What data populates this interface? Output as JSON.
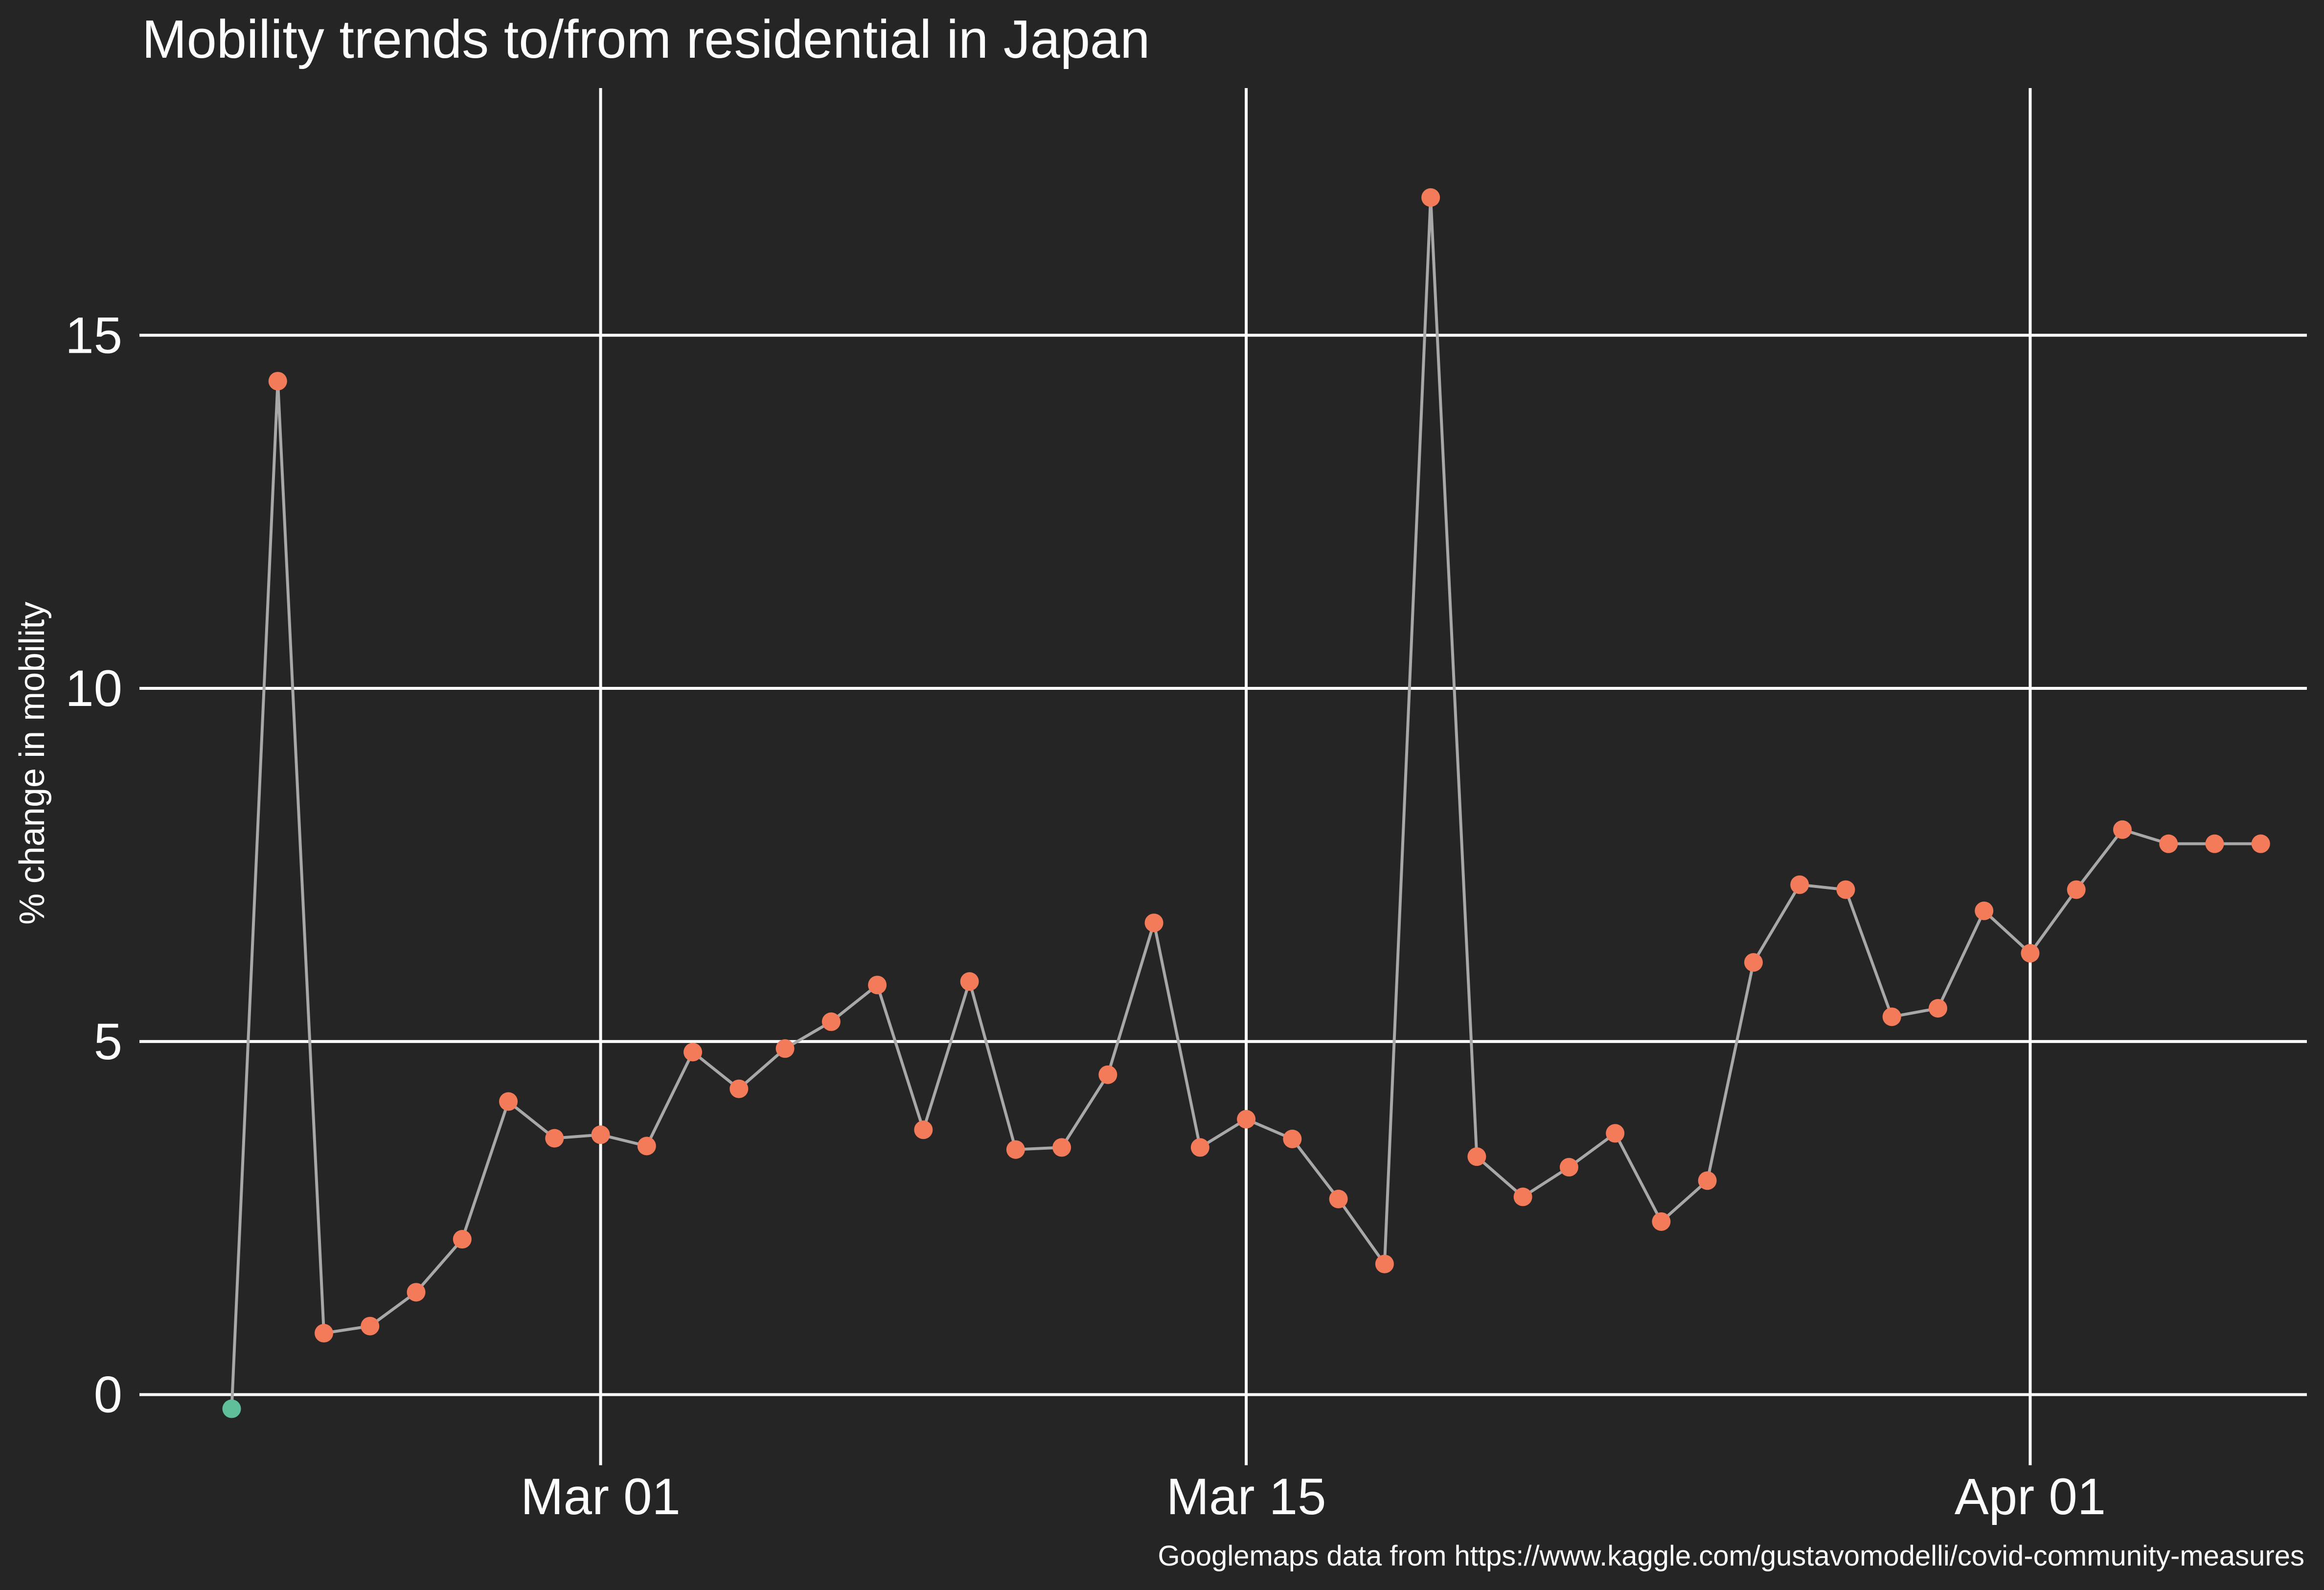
{
  "chart_data": {
    "type": "line",
    "title": "Mobility trends to/from residential in Japan",
    "ylabel": "% change in mobility",
    "xlabel": "",
    "caption": "Googlemaps data from https://www.kaggle.com/gustavomodelli/covid-community-measures",
    "x": [
      "2020-02-22",
      "2020-02-23",
      "2020-02-24",
      "2020-02-25",
      "2020-02-26",
      "2020-02-27",
      "2020-02-28",
      "2020-02-29",
      "2020-03-01",
      "2020-03-02",
      "2020-03-03",
      "2020-03-04",
      "2020-03-05",
      "2020-03-06",
      "2020-03-07",
      "2020-03-08",
      "2020-03-09",
      "2020-03-10",
      "2020-03-11",
      "2020-03-12",
      "2020-03-13",
      "2020-03-14",
      "2020-03-15",
      "2020-03-16",
      "2020-03-17",
      "2020-03-18",
      "2020-03-19",
      "2020-03-20",
      "2020-03-21",
      "2020-03-22",
      "2020-03-23",
      "2020-03-24",
      "2020-03-25",
      "2020-03-26",
      "2020-03-27",
      "2020-03-28",
      "2020-03-29",
      "2020-03-30",
      "2020-03-31",
      "2020-04-01",
      "2020-04-02",
      "2020-04-03",
      "2020-04-04",
      "2020-04-05",
      "2020-04-06"
    ],
    "values": [
      -0.2,
      14.35,
      0.87,
      0.97,
      1.45,
      2.2,
      4.15,
      3.63,
      3.68,
      3.52,
      4.85,
      4.33,
      4.9,
      5.28,
      5.8,
      3.75,
      5.85,
      3.47,
      3.5,
      4.53,
      6.68,
      3.5,
      3.9,
      3.62,
      2.77,
      1.85,
      16.95,
      3.37,
      2.8,
      3.22,
      3.7,
      2.45,
      3.03,
      6.12,
      7.22,
      7.15,
      5.35,
      5.47,
      6.85,
      6.25,
      7.15,
      8.0,
      7.8,
      7.8,
      7.8
    ],
    "point_colors": {
      "negative": "#5fbf9a",
      "positive": "#f47b5a"
    },
    "line_color": "#a8a8a8",
    "background": "#252525",
    "xticks": [
      {
        "date": "2020-03-01",
        "label": "Mar 01"
      },
      {
        "date": "2020-03-15",
        "label": "Mar 15"
      },
      {
        "date": "2020-04-01",
        "label": "Apr 01"
      }
    ],
    "yticks": [
      0,
      5,
      10,
      15
    ],
    "ylim": [
      -1,
      18.5
    ],
    "xlim": [
      "2020-02-20",
      "2020-04-07"
    ],
    "grid": true,
    "legend": "none"
  }
}
